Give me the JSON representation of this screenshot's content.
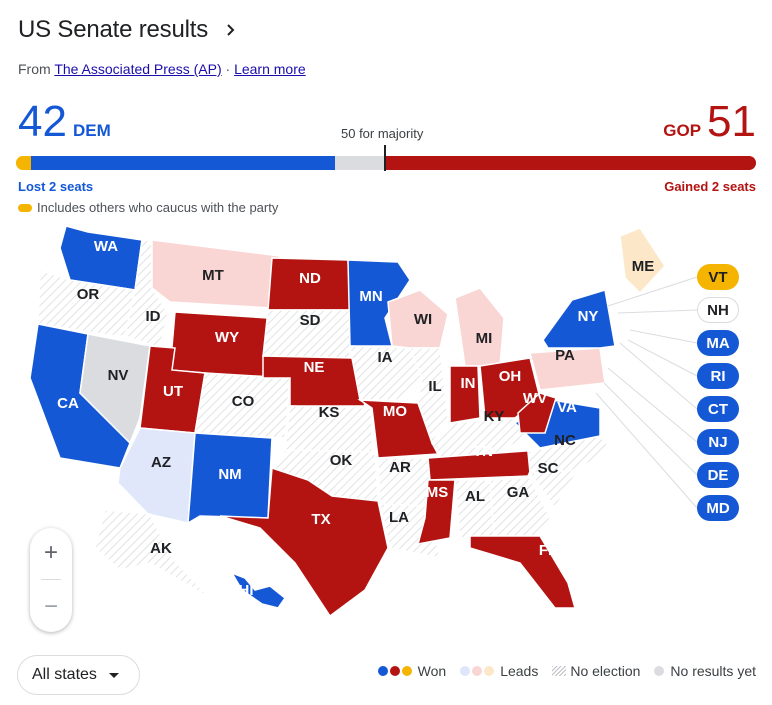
{
  "header": {
    "title": "US Senate results",
    "source_prefix": "From",
    "source_link": "The Associated Press (AP)",
    "separator": "·",
    "learn_more": "Learn more"
  },
  "tally": {
    "dem_seats": "42",
    "dem_label": "DEM",
    "gop_seats": "51",
    "gop_label": "GOP",
    "majority_label": "50 for majority",
    "dem_change": "Lost 2 seats",
    "gop_change": "Gained 2 seats",
    "others_note": "Includes others who caucus with the party",
    "bar_segments": {
      "others": 2,
      "dem": 42,
      "no_result": 7,
      "gop": 51
    }
  },
  "colors": {
    "dem": "#1558d6",
    "gop": "#b31412",
    "other": "#f4b400",
    "dem_lead": "#e0e7fb",
    "gop_lead": "#f9d6d3",
    "other_lead": "#fce8c8",
    "no_results": "#dadce0",
    "no_election": "#ffffff"
  },
  "states": [
    {
      "abbr": "WA",
      "status": "dem"
    },
    {
      "abbr": "OR",
      "status": "none"
    },
    {
      "abbr": "CA",
      "status": "dem"
    },
    {
      "abbr": "ID",
      "status": "none"
    },
    {
      "abbr": "NV",
      "status": "nores"
    },
    {
      "abbr": "MT",
      "status": "gop_lead"
    },
    {
      "abbr": "WY",
      "status": "gop"
    },
    {
      "abbr": "UT",
      "status": "gop"
    },
    {
      "abbr": "AZ",
      "status": "dem_lead"
    },
    {
      "abbr": "CO",
      "status": "none"
    },
    {
      "abbr": "NM",
      "status": "dem"
    },
    {
      "abbr": "ND",
      "status": "gop"
    },
    {
      "abbr": "SD",
      "status": "none"
    },
    {
      "abbr": "NE",
      "status": "gop"
    },
    {
      "abbr": "KS",
      "status": "none"
    },
    {
      "abbr": "OK",
      "status": "none"
    },
    {
      "abbr": "TX",
      "status": "gop"
    },
    {
      "abbr": "MN",
      "status": "dem"
    },
    {
      "abbr": "IA",
      "status": "none"
    },
    {
      "abbr": "MO",
      "status": "gop"
    },
    {
      "abbr": "AR",
      "status": "none"
    },
    {
      "abbr": "LA",
      "status": "none"
    },
    {
      "abbr": "WI",
      "status": "gop_lead"
    },
    {
      "abbr": "IL",
      "status": "none"
    },
    {
      "abbr": "MI",
      "status": "gop_lead"
    },
    {
      "abbr": "IN",
      "status": "gop"
    },
    {
      "abbr": "OH",
      "status": "gop"
    },
    {
      "abbr": "KY",
      "status": "none"
    },
    {
      "abbr": "TN",
      "status": "gop"
    },
    {
      "abbr": "MS",
      "status": "gop"
    },
    {
      "abbr": "AL",
      "status": "none"
    },
    {
      "abbr": "GA",
      "status": "none"
    },
    {
      "abbr": "FL",
      "status": "gop"
    },
    {
      "abbr": "SC",
      "status": "none"
    },
    {
      "abbr": "NC",
      "status": "none"
    },
    {
      "abbr": "VA",
      "status": "dem"
    },
    {
      "abbr": "WV",
      "status": "gop"
    },
    {
      "abbr": "PA",
      "status": "gop_lead"
    },
    {
      "abbr": "NY",
      "status": "dem"
    },
    {
      "abbr": "ME",
      "status": "other_lead"
    },
    {
      "abbr": "AK",
      "status": "none"
    },
    {
      "abbr": "HI",
      "status": "dem"
    }
  ],
  "callouts": [
    {
      "abbr": "VT",
      "status": "other"
    },
    {
      "abbr": "NH",
      "status": "none"
    },
    {
      "abbr": "MA",
      "status": "dem"
    },
    {
      "abbr": "RI",
      "status": "dem"
    },
    {
      "abbr": "CT",
      "status": "dem"
    },
    {
      "abbr": "NJ",
      "status": "dem"
    },
    {
      "abbr": "DE",
      "status": "dem"
    },
    {
      "abbr": "MD",
      "status": "dem"
    }
  ],
  "zoom": {
    "in_symbol": "+",
    "out_symbol": "−"
  },
  "filter": {
    "selected": "All states"
  },
  "legend": {
    "won": "Won",
    "leads": "Leads",
    "no_election": "No election",
    "no_results": "No results yet"
  }
}
